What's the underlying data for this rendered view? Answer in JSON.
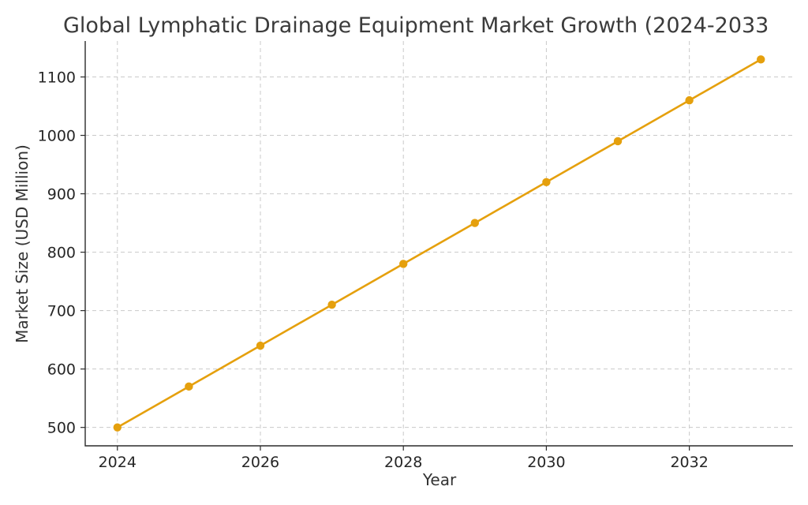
{
  "chart_data": {
    "type": "line",
    "title": "Global Lymphatic Drainage Equipment Market Growth (2024-2033",
    "xlabel": "Year",
    "ylabel": "Market Size (USD Million)",
    "x": [
      2024,
      2025,
      2026,
      2027,
      2028,
      2029,
      2030,
      2031,
      2032,
      2033
    ],
    "series": [
      {
        "values": [
          500,
          570,
          640,
          710,
          780,
          850,
          920,
          990,
          1060,
          1130
        ],
        "color": "#E5A00D"
      }
    ],
    "xticks": [
      2024,
      2026,
      2028,
      2030,
      2032
    ],
    "yticks": [
      500,
      600,
      700,
      800,
      900,
      1000,
      1100
    ],
    "xlim": [
      2023.55,
      2033.45
    ],
    "ylim": [
      468.5,
      1161.5
    ],
    "grid": true,
    "marker": "circle"
  }
}
